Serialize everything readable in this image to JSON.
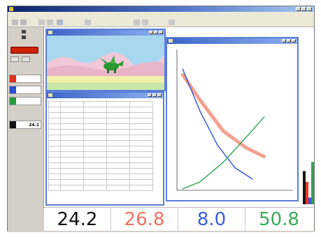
{
  "colors": {
    "black": "#111111",
    "red": "#f07060",
    "blue": "#3a5ed8",
    "green": "#3aaa5a",
    "bar_black": "#151515",
    "bar_red": "#ee3322",
    "bar_blue": "#3355dd",
    "bar_green": "#33a050"
  },
  "readouts": {
    "black": "24.2",
    "red": "26.8",
    "blue": "8.0",
    "green": "50.8"
  },
  "left_panel": {
    "meter_values": [
      "",
      "",
      "",
      "24.1"
    ],
    "meter_colors": [
      "#e03020",
      "#2a50d0",
      "#2a9a40",
      "#111111"
    ]
  },
  "animation": {
    "sky": "#a8d8f0",
    "ground": "#f0f0a8",
    "character": "green-dragon-icon"
  },
  "chart_data": {
    "type": "line",
    "title": "",
    "xlabel": "",
    "ylabel": "",
    "xlim": [
      0,
      10
    ],
    "ylim": [
      0,
      10
    ],
    "series": [
      {
        "color": "#f4a090",
        "points": [
          [
            0.5,
            8.2
          ],
          [
            2,
            6.4
          ],
          [
            4,
            4.2
          ],
          [
            6,
            3.0
          ],
          [
            7.5,
            2.4
          ]
        ]
      },
      {
        "color": "#3a5ed8",
        "points": [
          [
            0.5,
            8.6
          ],
          [
            2,
            5.6
          ],
          [
            3.5,
            3.2
          ],
          [
            5,
            1.6
          ],
          [
            6.5,
            0.8
          ]
        ]
      },
      {
        "color": "#3aaa5a",
        "points": [
          [
            0.5,
            0.1
          ],
          [
            2,
            0.6
          ],
          [
            4,
            2.0
          ],
          [
            6,
            3.8
          ],
          [
            7.5,
            5.2
          ]
        ]
      }
    ]
  },
  "bar_levels": {
    "black": 0.4,
    "red": 0.27,
    "blue": 0.08,
    "green": 0.51
  }
}
